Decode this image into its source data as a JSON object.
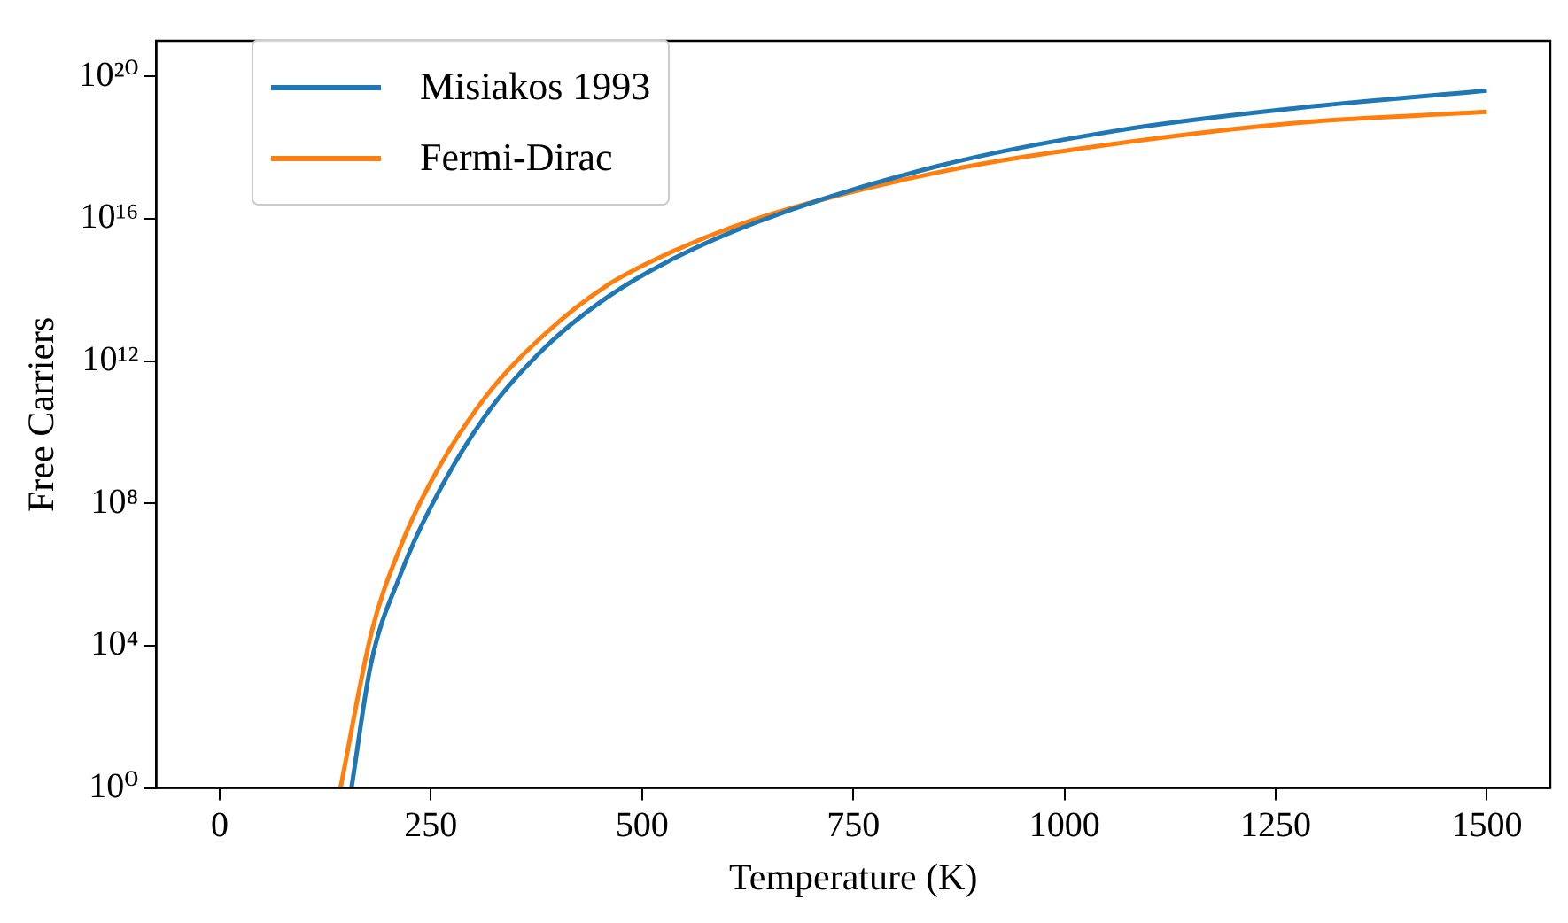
{
  "chart_data": {
    "type": "line",
    "xlabel": "Temperature (K)",
    "ylabel": "Free Carriers",
    "log": "y",
    "grid": false,
    "legend": "top left",
    "marker": "none",
    "line_style": "solid",
    "xlim": [
      -75,
      1575
    ],
    "xticks": [
      0,
      250,
      500,
      750,
      1000,
      1250,
      1500
    ],
    "ylim": [
      1,
      1e+21
    ],
    "yticks": [
      {
        "value": 1,
        "label": "10⁰"
      },
      {
        "value": 10000.0,
        "label": "10⁴"
      },
      {
        "value": 100000000.0,
        "label": "10⁸"
      },
      {
        "value": 1000000000000.0,
        "label": "10¹²"
      },
      {
        "value": 1e+16,
        "label": "10¹⁶"
      },
      {
        "value": 1e+20,
        "label": "10²⁰"
      }
    ],
    "series": [
      {
        "name": "Misiakos 1993",
        "color": "#1f77b4",
        "x": [
          156,
          179,
          214,
          250,
          315,
          386,
          458,
          529,
          636,
          850,
          1063,
          1278,
          1500
        ],
        "values": [
          1,
          3000.0,
          1000000.0,
          80000000.0,
          30000000000.0,
          2500000000000.0,
          60000000000000.0,
          600000000000000.0,
          8000000000000000.0,
          3e+17,
          3e+18,
          1.3e+19,
          4e+19
        ]
      },
      {
        "name": "Fermi-Dirac",
        "color": "#ff7f0e",
        "x": [
          143,
          180,
          214,
          250,
          315,
          386,
          458,
          529,
          636,
          850,
          1063,
          1278,
          1500
        ],
        "values": [
          1,
          25000.0,
          6000000.0,
          400000000.0,
          100000000000.0,
          6000000000000.0,
          130000000000000.0,
          1000000000000000.0,
          1e+16,
          2e+17,
          1.3e+18,
          5e+18,
          1e+19
        ]
      }
    ]
  }
}
